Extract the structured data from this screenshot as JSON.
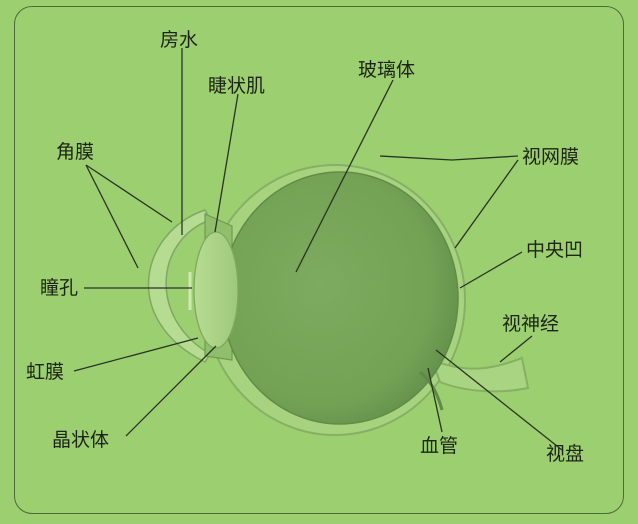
{
  "labels": {
    "aqueous_humor": "房水",
    "ciliary_muscle": "睫状肌",
    "vitreous_body": "玻璃体",
    "cornea": "角膜",
    "retina": "视网膜",
    "fovea": "中央凹",
    "pupil": "瞳孔",
    "optic_nerve": "视神经",
    "iris": "虹膜",
    "lens": "晶状体",
    "blood_vessel": "血管",
    "optic_disc": "视盘"
  },
  "colors": {
    "background": "#9ccf6f",
    "eyeball": "#77a359",
    "outline": "#4f6a3a",
    "text": "#1e2418"
  }
}
